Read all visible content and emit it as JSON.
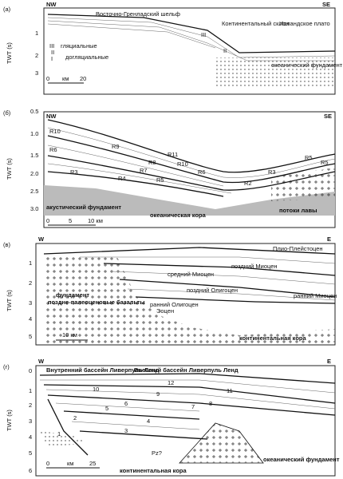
{
  "panels": [
    {
      "label": "(а)",
      "left": "NW",
      "right": "SE",
      "axis_title": "TWT (s)",
      "ticks": [
        "1",
        "2",
        "3"
      ],
      "annotations": [
        "Восточно-Гренладский шельф",
        "Континентальный склон",
        "Исландское плато",
        "III",
        "гляциальные",
        "II",
        "I",
        "догляциальные",
        "III",
        "II",
        "океанический фундамент"
      ],
      "scale": [
        "0",
        "км",
        "20"
      ]
    },
    {
      "label": "(б)",
      "left": "NW",
      "right": "SE",
      "axis_title": "TWT (s)",
      "ticks": [
        "0.5",
        "1.0",
        "1.5",
        "2.0",
        "2.5",
        "3.0"
      ],
      "annotations": [
        "R10",
        "R6",
        "R9",
        "R11",
        "R8",
        "R10",
        "R6",
        "R7",
        "R3",
        "R4",
        "R5",
        "R2",
        "R3",
        "R5",
        "R5",
        "акустический фундамент",
        "океаническая кора",
        "потоки лавы"
      ],
      "scale": [
        "0",
        "5",
        "10 км"
      ]
    },
    {
      "label": "(в)",
      "left": "W",
      "right": "E",
      "axis_title": "TWT (s)",
      "ticks": [
        "1",
        "2",
        "3",
        "4",
        "5"
      ],
      "annotations": [
        "Плио-Плейстоцен",
        "поздний Миоцен",
        "средний Миоцен",
        "поздний Олигоцен",
        "ранний Олигоцен",
        "Эоцен",
        "ранний Миоцен",
        "фундамент",
        "поздне-палеоценовые базальты",
        "континентальная кора"
      ],
      "scale": [
        "10 км"
      ]
    },
    {
      "label": "(г)",
      "left": "W",
      "right": "E",
      "axis_title": "TWT (s)",
      "ticks": [
        "0",
        "1",
        "2",
        "3",
        "4",
        "5",
        "6"
      ],
      "annotations": [
        "Внутренний бассейн Ливерпуль Ленд",
        "Внешний бассейн Ливерпуль Ленд",
        "12",
        "10",
        "11",
        "9",
        "8",
        "7",
        "6",
        "5",
        "4",
        "3",
        "2",
        "1",
        "Pz?",
        "континентальная кора",
        "океанический фундамент"
      ],
      "scale": [
        "0",
        "км",
        "25"
      ]
    }
  ]
}
